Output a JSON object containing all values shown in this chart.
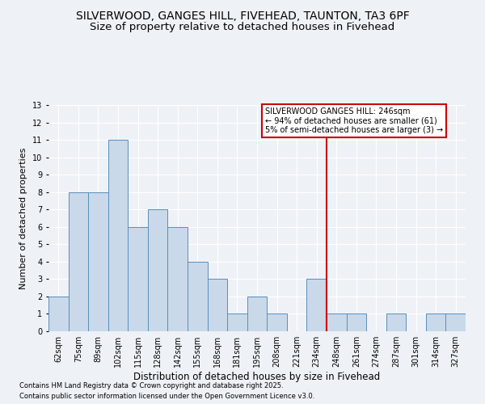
{
  "title": "SILVERWOOD, GANGES HILL, FIVEHEAD, TAUNTON, TA3 6PF",
  "subtitle": "Size of property relative to detached houses in Fivehead",
  "xlabel": "Distribution of detached houses by size in Fivehead",
  "ylabel": "Number of detached properties",
  "categories": [
    "62sqm",
    "75sqm",
    "89sqm",
    "102sqm",
    "115sqm",
    "128sqm",
    "142sqm",
    "155sqm",
    "168sqm",
    "181sqm",
    "195sqm",
    "208sqm",
    "221sqm",
    "234sqm",
    "248sqm",
    "261sqm",
    "274sqm",
    "287sqm",
    "301sqm",
    "314sqm",
    "327sqm"
  ],
  "values": [
    2,
    8,
    8,
    11,
    6,
    7,
    6,
    4,
    3,
    1,
    2,
    1,
    0,
    3,
    1,
    1,
    0,
    1,
    0,
    1,
    1
  ],
  "bar_color": "#c9d9ea",
  "bar_edge_color": "#5b8db8",
  "background_color": "#eef2f7",
  "grid_color": "#ffffff",
  "red_line_index": 14,
  "legend_title": "SILVERWOOD GANGES HILL: 246sqm",
  "legend_line1": "← 94% of detached houses are smaller (61)",
  "legend_line2": "5% of semi-detached houses are larger (3) →",
  "legend_box_color": "#cc0000",
  "ylim": [
    0,
    13
  ],
  "yticks": [
    0,
    1,
    2,
    3,
    4,
    5,
    6,
    7,
    8,
    9,
    10,
    11,
    12,
    13
  ],
  "footer1": "Contains HM Land Registry data © Crown copyright and database right 2025.",
  "footer2": "Contains public sector information licensed under the Open Government Licence v3.0.",
  "title_fontsize": 10,
  "subtitle_fontsize": 9.5,
  "ylabel_fontsize": 8,
  "xlabel_fontsize": 8.5,
  "tick_fontsize": 7,
  "legend_fontsize": 7,
  "footer_fontsize": 6
}
